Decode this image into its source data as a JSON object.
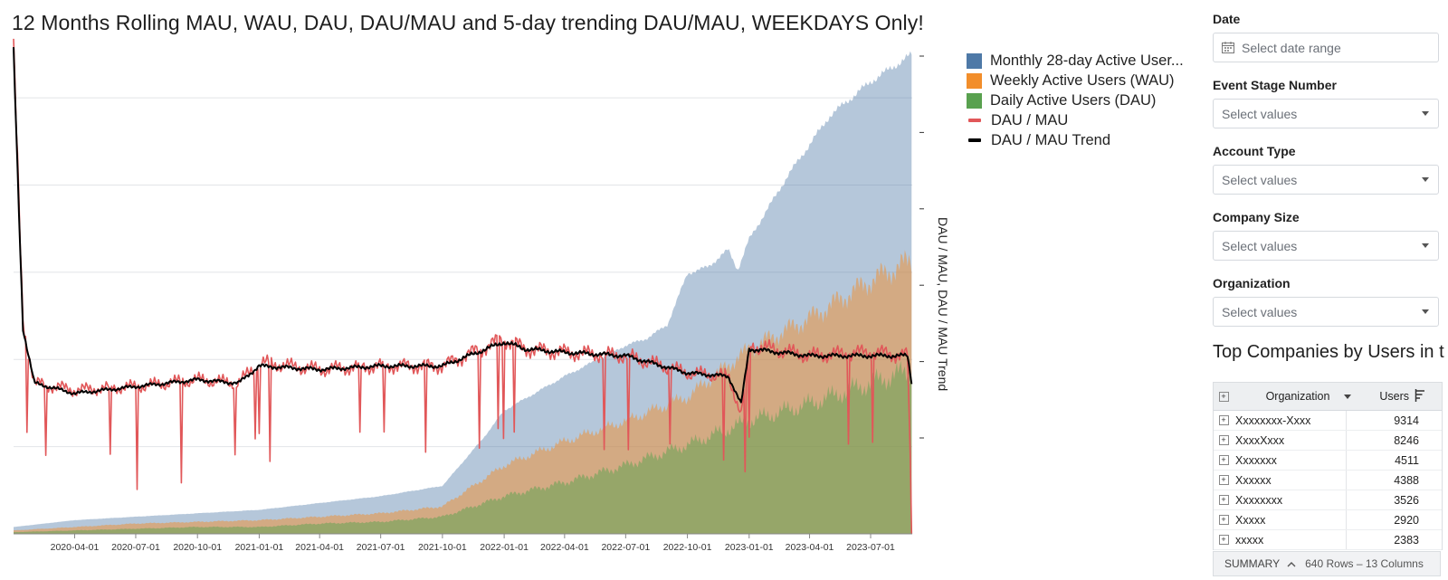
{
  "title": "12 Months Rolling MAU, WAU, DAU, DAU/MAU and 5-day trending DAU/MAU, WEEKDAYS Only!",
  "colors": {
    "mau": "#4e79a7",
    "wau": "#f28e2b",
    "dau": "#59a14f",
    "ratio": "#e15759",
    "trend": "#000000",
    "grid": "#e2e4e8",
    "axis": "#333333"
  },
  "chart_data": {
    "type": "area",
    "xlabel": "",
    "ylabel": "DAU / MAU, DAU / MAU Trend",
    "x_ticks": [
      "2020-04-01",
      "2020-07-01",
      "2020-10-01",
      "2021-01-01",
      "2021-04-01",
      "2021-07-01",
      "2021-10-01",
      "2022-01-01",
      "2022-04-01",
      "2022-07-01",
      "2022-10-01",
      "2023-01-01",
      "2023-04-01",
      "2023-07-01"
    ],
    "x_range": [
      "2020-01-01",
      "2023-09-01"
    ],
    "grid": true,
    "legend_position": "top-right",
    "series": [
      {
        "name": "Monthly 28-day Active User...",
        "kind": "area",
        "x": [
          "2020-01-01",
          "2020-04-01",
          "2020-07-01",
          "2020-10-01",
          "2021-01-01",
          "2021-04-01",
          "2021-07-01",
          "2021-10-01",
          "2021-12-01",
          "2022-01-01",
          "2022-04-01",
          "2022-07-01",
          "2022-08-01",
          "2022-09-01",
          "2022-10-01",
          "2022-11-01",
          "2022-12-01",
          "2022-12-15",
          "2023-01-01",
          "2023-03-01",
          "2023-05-01",
          "2023-07-01",
          "2023-09-01"
        ],
        "values": [
          0.02,
          0.04,
          0.05,
          0.06,
          0.07,
          0.09,
          0.11,
          0.14,
          0.28,
          0.36,
          0.46,
          0.55,
          0.57,
          0.61,
          0.76,
          0.78,
          0.83,
          0.77,
          0.86,
          1.05,
          1.22,
          1.32,
          1.4
        ]
      },
      {
        "name": "Weekly Active Users (WAU)",
        "kind": "area",
        "x": [
          "2020-01-01",
          "2020-04-01",
          "2020-07-01",
          "2020-10-01",
          "2021-01-01",
          "2021-04-01",
          "2021-07-01",
          "2021-10-01",
          "2022-01-01",
          "2022-04-01",
          "2022-07-01",
          "2022-10-01",
          "2023-01-01",
          "2023-04-01",
          "2023-07-01",
          "2023-09-01"
        ],
        "values": [
          0.01,
          0.02,
          0.03,
          0.035,
          0.04,
          0.05,
          0.06,
          0.08,
          0.2,
          0.27,
          0.33,
          0.4,
          0.54,
          0.63,
          0.74,
          0.8
        ]
      },
      {
        "name": "Daily Active Users (DAU)",
        "kind": "area",
        "x": [
          "2020-01-01",
          "2020-04-01",
          "2020-07-01",
          "2020-10-01",
          "2021-01-01",
          "2021-04-01",
          "2021-07-01",
          "2021-10-01",
          "2022-01-01",
          "2022-04-01",
          "2022-07-01",
          "2022-10-01",
          "2023-01-01",
          "2023-04-01",
          "2023-07-01",
          "2023-09-01"
        ],
        "values": [
          0.005,
          0.01,
          0.015,
          0.02,
          0.02,
          0.03,
          0.035,
          0.05,
          0.11,
          0.15,
          0.2,
          0.26,
          0.33,
          0.38,
          0.44,
          0.48
        ]
      },
      {
        "name": "DAU / MAU",
        "kind": "line",
        "x": [
          "2020-01-01",
          "2020-01-15",
          "2020-02-01",
          "2020-04-01",
          "2020-07-01",
          "2020-10-01",
          "2020-12-01",
          "2021-01-01",
          "2021-04-01",
          "2021-07-01",
          "2021-10-01",
          "2022-01-01",
          "2022-02-01",
          "2022-04-01",
          "2022-07-01",
          "2022-10-01",
          "2022-12-01",
          "2022-12-20",
          "2023-01-01",
          "2023-04-01",
          "2023-07-01",
          "2023-08-25",
          "2023-09-01"
        ],
        "values": [
          1.4,
          0.62,
          0.44,
          0.42,
          0.43,
          0.45,
          0.44,
          0.5,
          0.48,
          0.49,
          0.49,
          0.57,
          0.54,
          0.53,
          0.52,
          0.47,
          0.46,
          0.35,
          0.55,
          0.52,
          0.53,
          0.52,
          0.0
        ]
      },
      {
        "name": "DAU / MAU Trend",
        "kind": "line",
        "x": [
          "2020-01-01",
          "2020-01-15",
          "2020-02-01",
          "2020-04-01",
          "2020-07-01",
          "2020-10-01",
          "2020-12-01",
          "2021-01-01",
          "2021-04-01",
          "2021-07-01",
          "2021-10-01",
          "2022-01-01",
          "2022-02-01",
          "2022-04-01",
          "2022-07-01",
          "2022-10-01",
          "2022-12-01",
          "2022-12-20",
          "2023-01-01",
          "2023-04-01",
          "2023-07-01",
          "2023-08-25",
          "2023-09-01"
        ],
        "values": [
          1.4,
          0.6,
          0.44,
          0.41,
          0.43,
          0.45,
          0.44,
          0.49,
          0.48,
          0.49,
          0.49,
          0.56,
          0.54,
          0.53,
          0.52,
          0.47,
          0.46,
          0.38,
          0.54,
          0.52,
          0.52,
          0.52,
          0.43
        ]
      }
    ]
  },
  "legend": [
    {
      "label": "Monthly 28-day Active User...",
      "kind": "area",
      "color": "#4e79a7"
    },
    {
      "label": "Weekly Active Users (WAU)",
      "kind": "area",
      "color": "#f28e2b"
    },
    {
      "label": "Daily Active Users (DAU)",
      "kind": "area",
      "color": "#59a14f"
    },
    {
      "label": "DAU / MAU",
      "kind": "line",
      "color": "#e15759"
    },
    {
      "label": "DAU / MAU Trend",
      "kind": "line",
      "color": "#000000"
    }
  ],
  "filters": [
    {
      "label": "Date",
      "placeholder": "Select date range",
      "icon": "calendar-icon"
    },
    {
      "label": "Event Stage Number",
      "placeholder": "Select values",
      "icon": "chevron-down-icon"
    },
    {
      "label": "Account Type",
      "placeholder": "Select values",
      "icon": "chevron-down-icon"
    },
    {
      "label": "Company Size",
      "placeholder": "Select values",
      "icon": "chevron-down-icon"
    },
    {
      "label": "Organization",
      "placeholder": "Select values",
      "icon": "chevron-down-icon"
    }
  ],
  "table": {
    "title": "Top Companies by Users in t",
    "columns": [
      "Organization",
      "Users"
    ],
    "rows": [
      {
        "org": "Xxxxxxxx-Xxxx",
        "users": "9314"
      },
      {
        "org": "XxxxXxxx",
        "users": "8246"
      },
      {
        "org": "Xxxxxxx",
        "users": "4511"
      },
      {
        "org": "Xxxxxx",
        "users": "4388"
      },
      {
        "org": "Xxxxxxxx",
        "users": "3526"
      },
      {
        "org": "Xxxxx",
        "users": "2920"
      },
      {
        "org": "xxxxx",
        "users": "2383"
      }
    ],
    "summary_label": "SUMMARY",
    "summary_info": "640 Rows – 13 Columns"
  }
}
